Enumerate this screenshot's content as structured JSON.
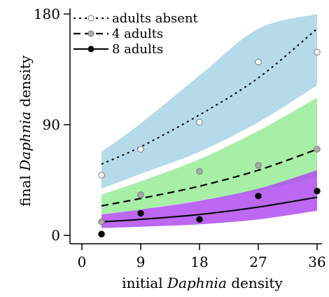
{
  "chart_data": {
    "type": "scatter",
    "xlabel_plain": "initial ",
    "xlabel_italic": "Daphnia",
    "xlabel_tail": " density",
    "ylabel_plain": "final ",
    "ylabel_italic": "Daphnia",
    "ylabel_tail": " density",
    "xlim": [
      0,
      37
    ],
    "ylim": [
      0,
      185
    ],
    "xticks": [
      0,
      9,
      18,
      27,
      36
    ],
    "xtick_labels": [
      "0",
      "9",
      "18",
      "27",
      "36"
    ],
    "yticks": [
      0,
      90,
      180
    ],
    "ytick_labels": [
      "0",
      "90",
      "180"
    ],
    "legend_position": "top-left",
    "grid": false,
    "series": [
      {
        "name": "adults absent",
        "line_style": "dotted",
        "marker_fill": "#ffffff",
        "band_color": "#a8d3e6",
        "x": [
          3,
          9,
          18,
          27,
          36
        ],
        "y": [
          49,
          70,
          92,
          141,
          149
        ],
        "fit_x": [
          3,
          9,
          18,
          27,
          36
        ],
        "fit_y": [
          58,
          72,
          98,
          128,
          168
        ],
        "band_lower": [
          38,
          50,
          68,
          92,
          122
        ],
        "band_upper": [
          68,
          91,
          130,
          168,
          180
        ]
      },
      {
        "name": "4 adults",
        "line_style": "dashed",
        "marker_fill": "#aaaaaa",
        "band_color": "#98ec98",
        "x": [
          3,
          9,
          18,
          27,
          36
        ],
        "y": [
          11,
          33,
          52,
          57,
          70
        ],
        "fit_x": [
          3,
          9,
          18,
          27,
          36
        ],
        "fit_y": [
          24,
          30,
          40,
          53,
          70
        ],
        "band_lower": [
          17,
          21,
          28,
          36,
          48
        ],
        "band_upper": [
          33,
          44,
          62,
          85,
          112
        ]
      },
      {
        "name": "8 adults",
        "line_style": "solid",
        "marker_fill": "#000000",
        "band_color": "#b04ef0",
        "x": [
          3,
          9,
          18,
          27,
          36
        ],
        "y": [
          1,
          18,
          13,
          32,
          36
        ],
        "fit_x": [
          3,
          9,
          18,
          27,
          36
        ],
        "fit_y": [
          11,
          13,
          17,
          23,
          31
        ],
        "band_lower": [
          6,
          7,
          9,
          13,
          20
        ],
        "band_upper": [
          17,
          21,
          28,
          38,
          53
        ]
      }
    ]
  }
}
